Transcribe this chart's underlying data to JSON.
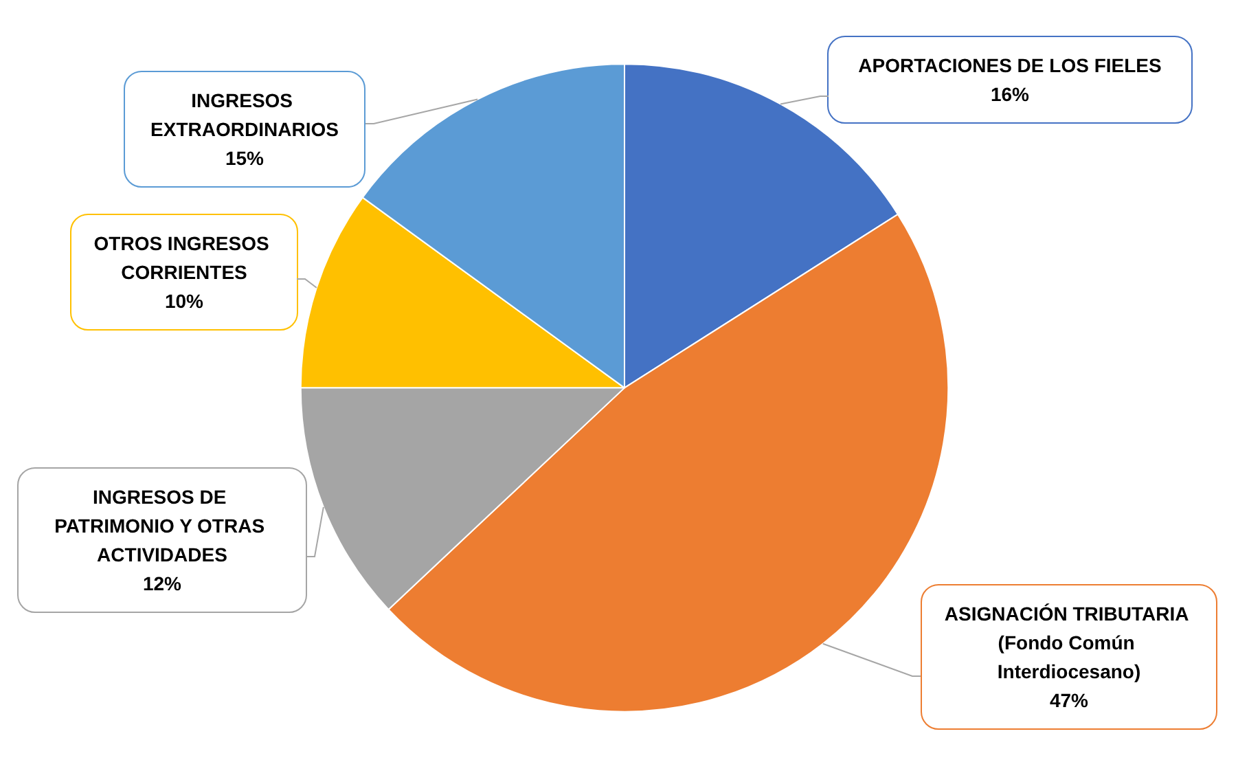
{
  "chart_data": {
    "type": "pie",
    "categories": [
      "APORTACIONES DE LOS FIELES",
      "ASIGNACIÓN TRIBUTARIA (Fondo Común Interdiocesano)",
      "INGRESOS DE PATRIMONIO Y OTRAS ACTIVIDADES",
      "OTROS INGRESOS CORRIENTES",
      "INGRESOS EXTRAORDINARIOS"
    ],
    "values": [
      16,
      47,
      12,
      10,
      15
    ],
    "value_labels": [
      "16%",
      "47%",
      "12%",
      "10%",
      "15%"
    ],
    "colors": [
      "#4472c4",
      "#ed7d31",
      "#a5a5a5",
      "#ffc000",
      "#5b9bd5"
    ],
    "legend": false
  }
}
